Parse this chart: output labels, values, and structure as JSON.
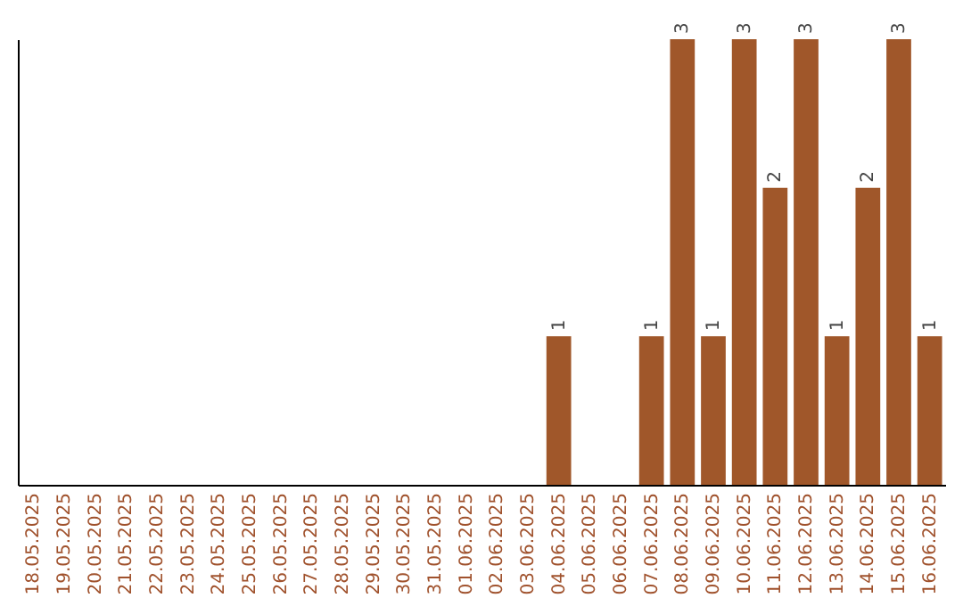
{
  "chart_data": {
    "type": "bar",
    "categories": [
      "18.05.2025",
      "19.05.2025",
      "20.05.2025",
      "21.05.2025",
      "22.05.2025",
      "23.05.2025",
      "24.05.2025",
      "25.05.2025",
      "26.05.2025",
      "27.05.2025",
      "28.05.2025",
      "29.05.2025",
      "30.05.2025",
      "31.05.2025",
      "01.06.2025",
      "02.06.2025",
      "03.06.2025",
      "04.06.2025",
      "05.06.2025",
      "06.06.2025",
      "07.06.2025",
      "08.06.2025",
      "09.06.2025",
      "10.06.2025",
      "11.06.2025",
      "12.06.2025",
      "13.06.2025",
      "14.06.2025",
      "15.06.2025",
      "16.06.2025"
    ],
    "values": [
      null,
      null,
      null,
      null,
      null,
      null,
      null,
      null,
      null,
      null,
      null,
      null,
      null,
      null,
      null,
      null,
      null,
      1,
      null,
      null,
      1,
      3,
      1,
      3,
      2,
      3,
      1,
      2,
      3,
      1
    ],
    "value_labels": [
      null,
      null,
      null,
      null,
      null,
      null,
      null,
      null,
      null,
      null,
      null,
      null,
      null,
      null,
      null,
      null,
      null,
      "1",
      null,
      null,
      "1",
      "3",
      "1",
      "3",
      "2",
      "3",
      "1",
      "2",
      "3",
      "1"
    ],
    "color": "#a0572a",
    "tick_labels": "x"
  }
}
